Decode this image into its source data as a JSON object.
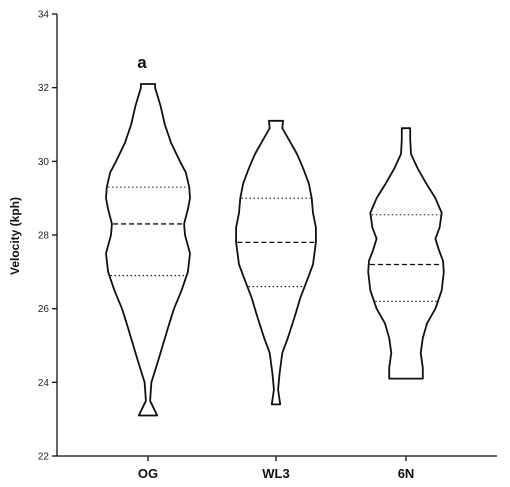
{
  "chart_data": {
    "type": "violin",
    "ylabel": "Velocity (kph)",
    "ylim": [
      22,
      34
    ],
    "yticks": [
      "22",
      "24",
      "26",
      "28",
      "30",
      "32",
      "34"
    ],
    "grid": false,
    "categories": [
      "OG",
      "WL3",
      "6N"
    ],
    "annotations": [
      {
        "category": "OG",
        "text": "a"
      }
    ],
    "violins": [
      {
        "name": "OG",
        "min": 23.1,
        "max": 32.1,
        "q1": 26.9,
        "median": 28.3,
        "q3": 29.3,
        "profile": [
          [
            23.1,
            0.22
          ],
          [
            23.5,
            0.05
          ],
          [
            24.0,
            0.08
          ],
          [
            24.5,
            0.22
          ],
          [
            25.0,
            0.35
          ],
          [
            25.5,
            0.48
          ],
          [
            26.0,
            0.62
          ],
          [
            26.5,
            0.8
          ],
          [
            27.0,
            0.95
          ],
          [
            27.5,
            1.0
          ],
          [
            28.0,
            0.88
          ],
          [
            28.3,
            0.86
          ],
          [
            28.7,
            0.95
          ],
          [
            29.0,
            1.0
          ],
          [
            29.3,
            0.98
          ],
          [
            29.7,
            0.9
          ],
          [
            30.0,
            0.76
          ],
          [
            30.5,
            0.55
          ],
          [
            31.0,
            0.4
          ],
          [
            31.5,
            0.3
          ],
          [
            32.0,
            0.17
          ],
          [
            32.1,
            0.17
          ]
        ]
      },
      {
        "name": "WL3",
        "min": 23.4,
        "max": 31.1,
        "q1": 26.6,
        "median": 27.8,
        "q3": 29.0,
        "profile": [
          [
            23.4,
            0.1
          ],
          [
            23.8,
            0.05
          ],
          [
            24.2,
            0.08
          ],
          [
            24.8,
            0.15
          ],
          [
            25.2,
            0.28
          ],
          [
            25.8,
            0.45
          ],
          [
            26.3,
            0.58
          ],
          [
            26.8,
            0.75
          ],
          [
            27.2,
            0.88
          ],
          [
            27.8,
            0.95
          ],
          [
            28.2,
            0.95
          ],
          [
            28.6,
            0.88
          ],
          [
            29.0,
            0.85
          ],
          [
            29.4,
            0.78
          ],
          [
            29.8,
            0.65
          ],
          [
            30.2,
            0.5
          ],
          [
            30.6,
            0.3
          ],
          [
            30.9,
            0.15
          ],
          [
            31.1,
            0.17
          ]
        ]
      },
      {
        "name": "6N",
        "min": 24.1,
        "max": 30.9,
        "q1": 26.2,
        "median": 27.2,
        "q3": 28.55,
        "profile": [
          [
            24.1,
            0.4
          ],
          [
            24.4,
            0.4
          ],
          [
            24.8,
            0.35
          ],
          [
            25.2,
            0.4
          ],
          [
            25.6,
            0.5
          ],
          [
            26.0,
            0.7
          ],
          [
            26.5,
            0.85
          ],
          [
            27.0,
            0.9
          ],
          [
            27.3,
            0.88
          ],
          [
            27.6,
            0.78
          ],
          [
            27.9,
            0.7
          ],
          [
            28.2,
            0.8
          ],
          [
            28.6,
            0.85
          ],
          [
            29.0,
            0.7
          ],
          [
            29.4,
            0.48
          ],
          [
            29.8,
            0.28
          ],
          [
            30.2,
            0.12
          ],
          [
            30.6,
            0.1
          ],
          [
            30.9,
            0.1
          ]
        ]
      }
    ]
  }
}
